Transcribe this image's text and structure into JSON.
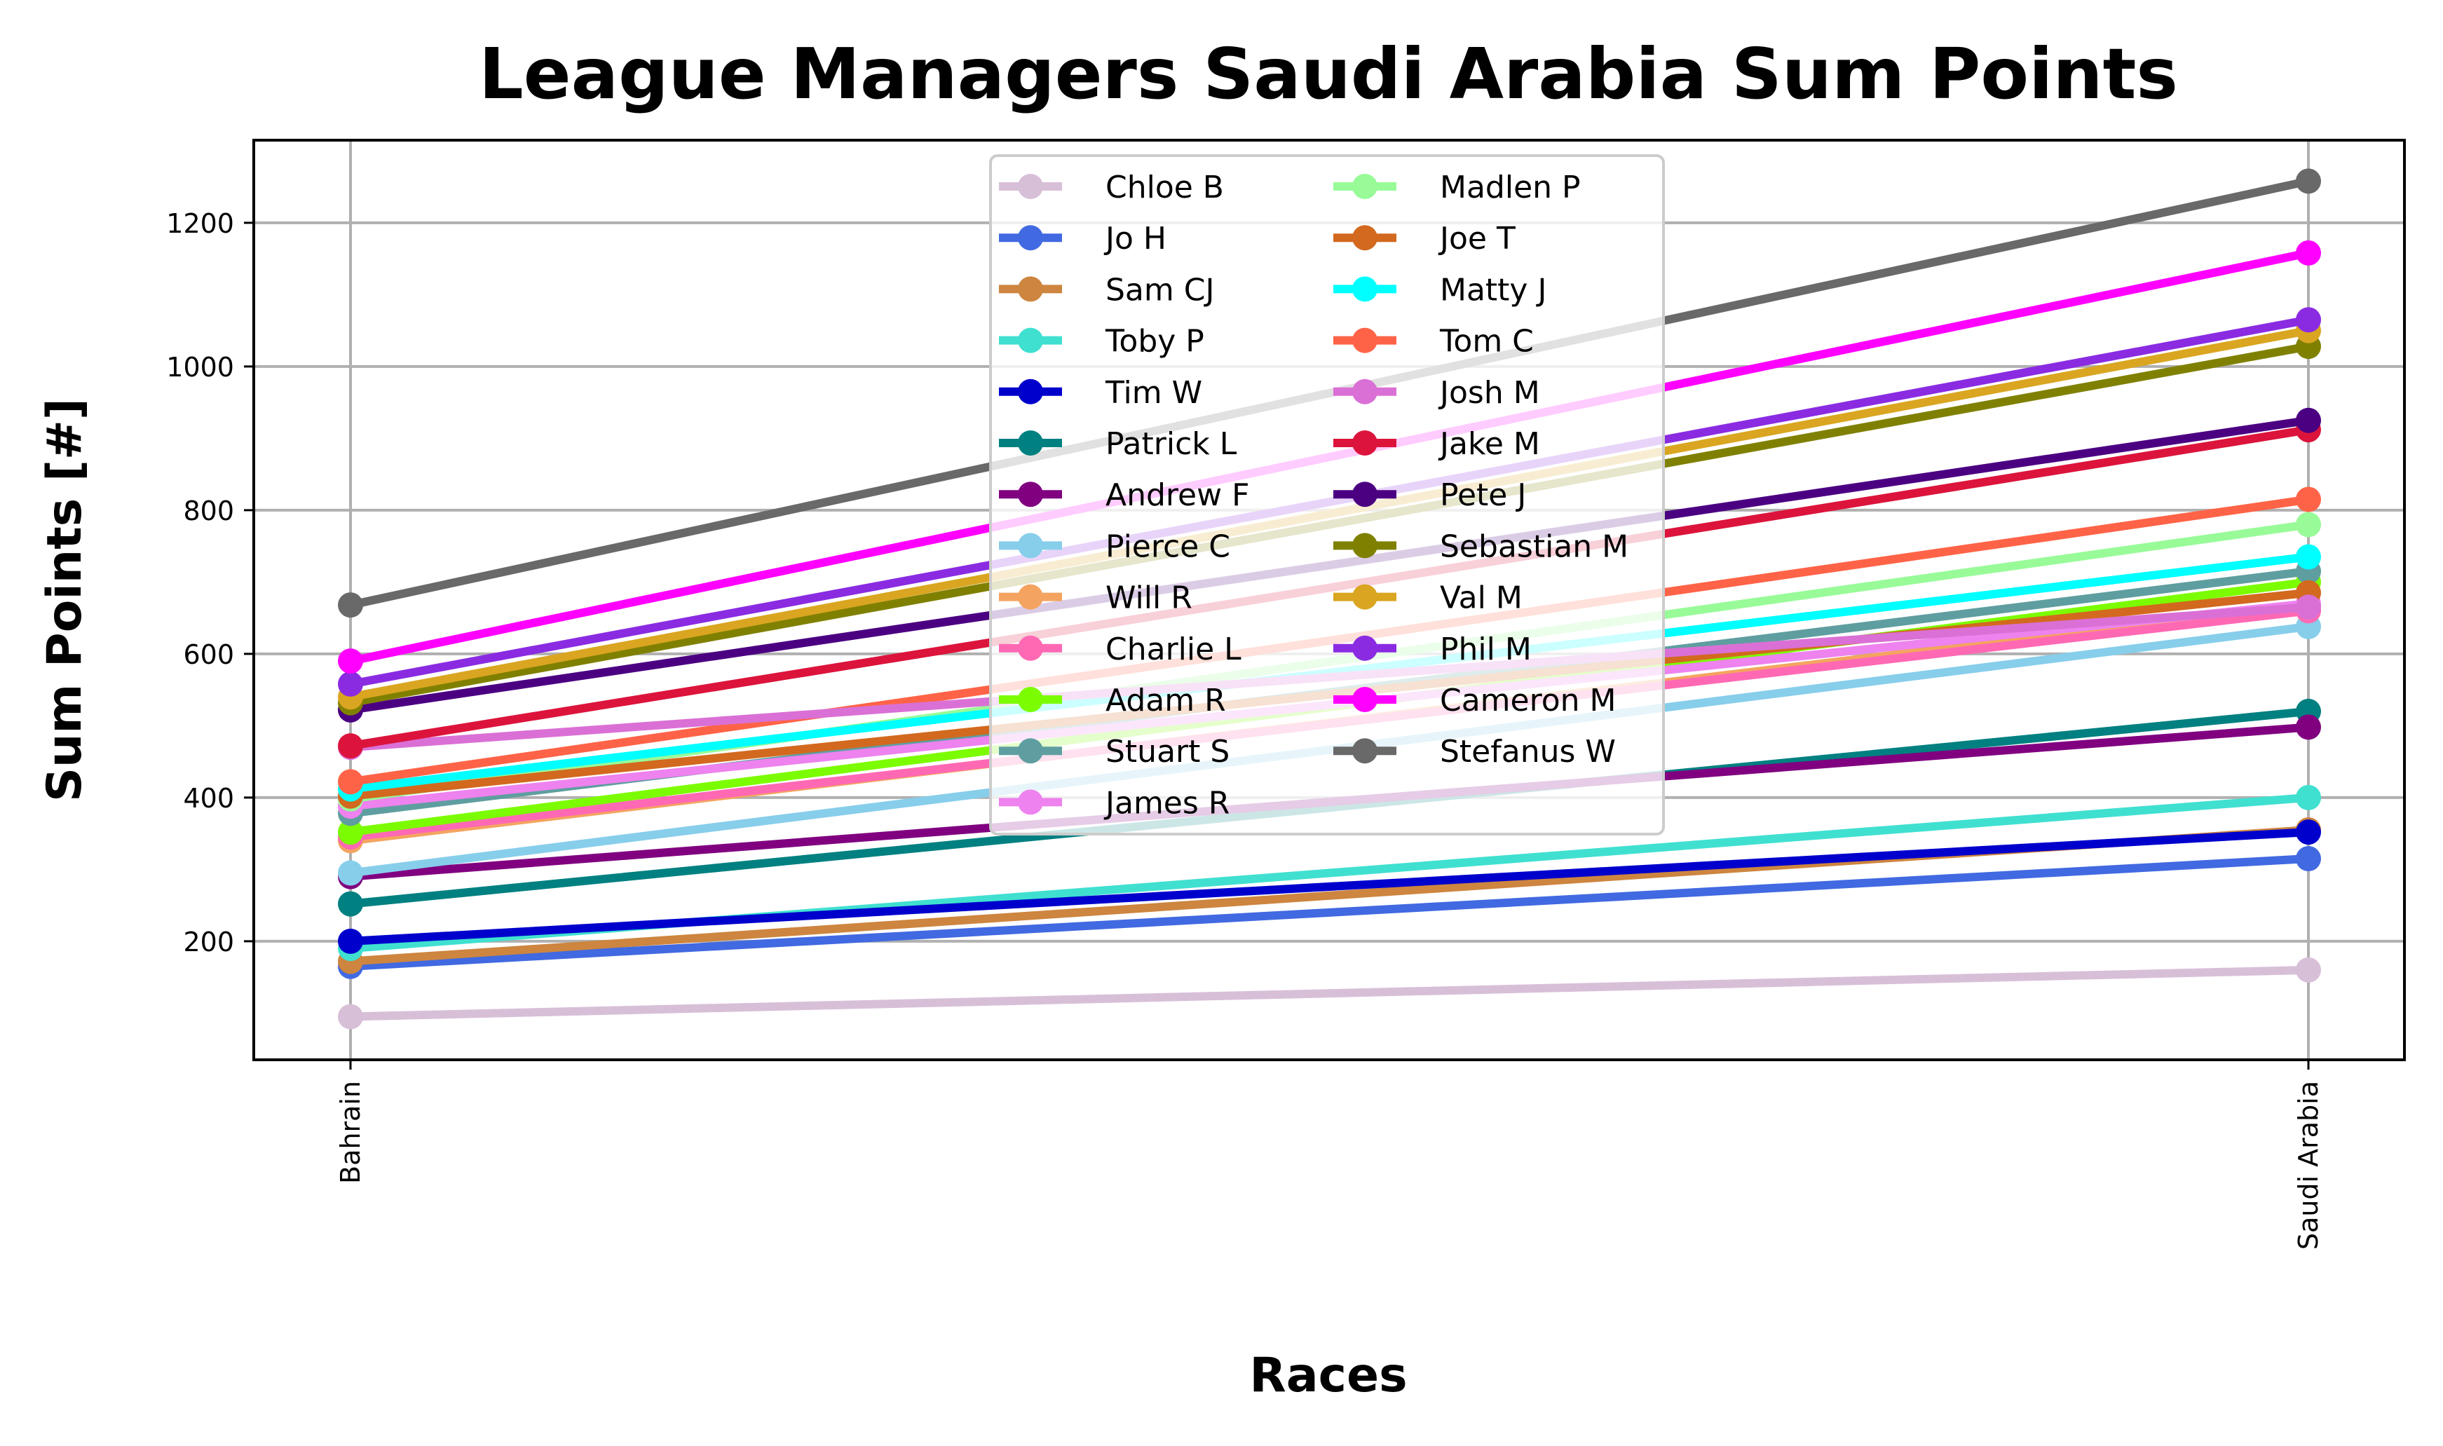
{
  "chart_data": {
    "type": "line",
    "title": "League Managers Saudi Arabia Sum Points",
    "xlabel": "Races",
    "ylabel": "Sum Points [#]",
    "categories": [
      "Bahrain",
      "Saudi Arabia"
    ],
    "ylim": [
      35,
      1315
    ],
    "yticks": [
      200,
      400,
      600,
      800,
      1000,
      1200
    ],
    "grid": true,
    "legend_position": "top-center",
    "legend_columns": 2,
    "series": [
      {
        "name": "Chloe B",
        "color": "#d8bfd8",
        "values": [
          95,
          160
        ]
      },
      {
        "name": "Jo H",
        "color": "#4169e1",
        "values": [
          165,
          315
        ]
      },
      {
        "name": "Sam CJ",
        "color": "#cd853f",
        "values": [
          172,
          355
        ]
      },
      {
        "name": "Toby P",
        "color": "#40e0d0",
        "values": [
          190,
          400
        ]
      },
      {
        "name": "Tim W",
        "color": "#0000cd",
        "values": [
          200,
          352
        ]
      },
      {
        "name": "Patrick L",
        "color": "#008080",
        "values": [
          252,
          520
        ]
      },
      {
        "name": "Andrew F",
        "color": "#800080",
        "values": [
          290,
          498
        ]
      },
      {
        "name": "Pierce C",
        "color": "#87ceeb",
        "values": [
          295,
          638
        ]
      },
      {
        "name": "Will R",
        "color": "#f4a460",
        "values": [
          340,
          668
        ]
      },
      {
        "name": "Charlie L",
        "color": "#ff69b4",
        "values": [
          345,
          660
        ]
      },
      {
        "name": "Adam R",
        "color": "#7cfc00",
        "values": [
          352,
          700
        ]
      },
      {
        "name": "Stuart S",
        "color": "#5f9ea0",
        "values": [
          378,
          715
        ]
      },
      {
        "name": "James R",
        "color": "#ee82ee",
        "values": [
          388,
          670
        ]
      },
      {
        "name": "Madlen P",
        "color": "#98fb98",
        "values": [
          398,
          780
        ]
      },
      {
        "name": "Joe T",
        "color": "#d2691e",
        "values": [
          402,
          685
        ]
      },
      {
        "name": "Matty J",
        "color": "#00ffff",
        "values": [
          412,
          735
        ]
      },
      {
        "name": "Tom C",
        "color": "#ff6347",
        "values": [
          422,
          815
        ]
      },
      {
        "name": "Josh M",
        "color": "#da70d6",
        "values": [
          470,
          665
        ]
      },
      {
        "name": "Jake M",
        "color": "#dc143c",
        "values": [
          472,
          912
        ]
      },
      {
        "name": "Pete J",
        "color": "#4b0082",
        "values": [
          522,
          925
        ]
      },
      {
        "name": "Sebastian M",
        "color": "#808000",
        "values": [
          532,
          1028
        ]
      },
      {
        "name": "Val M",
        "color": "#daa520",
        "values": [
          540,
          1050
        ]
      },
      {
        "name": "Phil M",
        "color": "#8a2be2",
        "values": [
          558,
          1065
        ]
      },
      {
        "name": "Cameron M",
        "color": "#ff00ff",
        "values": [
          590,
          1158
        ]
      },
      {
        "name": "Stefanus W",
        "color": "#696969",
        "values": [
          668,
          1258
        ]
      }
    ]
  }
}
